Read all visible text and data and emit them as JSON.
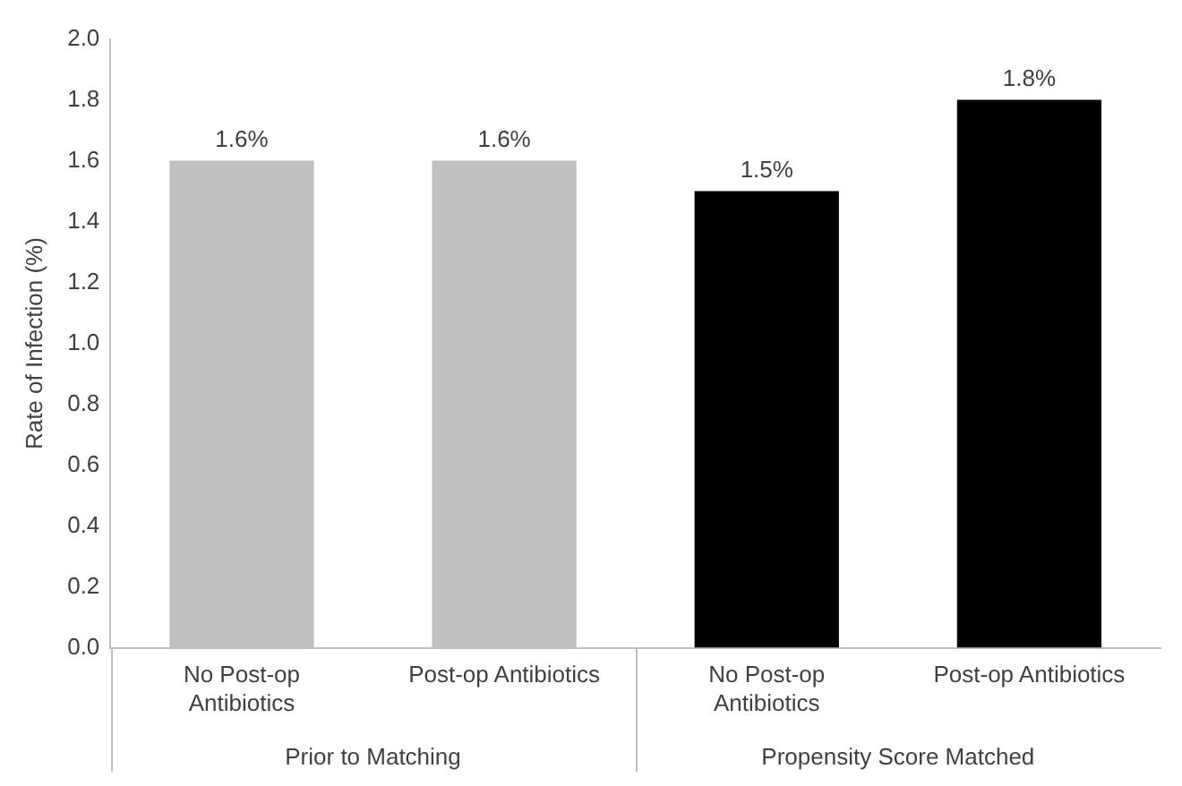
{
  "chart_data": {
    "type": "bar",
    "ylabel": "Rate of Infection (%)",
    "categories": [
      "No Post-op Antibiotics",
      "Post-op Antibiotics",
      "No Post-op Antibiotics",
      "Post-op Antibiotics"
    ],
    "values": [
      1.6,
      1.6,
      1.5,
      1.8
    ],
    "colors": [
      "#c0c0c0",
      "#c0c0c0",
      "#000000",
      "#000000"
    ],
    "value_labels": [
      "1.6%",
      "1.6%",
      "1.5%",
      "1.8%"
    ],
    "annotations": [
      "Prior to Matching",
      "Propensity Score Matched"
    ],
    "ylim": [
      0,
      2
    ],
    "yticks": [
      {
        "value": 0,
        "label": "0.0"
      },
      0.2,
      0.4,
      0.6,
      0.8,
      {
        "value": 1,
        "label": "1.0"
      },
      1.2,
      1.4,
      1.6,
      1.8,
      {
        "value": 2,
        "label": "2.0"
      }
    ],
    "grid": false,
    "legend": false
  }
}
